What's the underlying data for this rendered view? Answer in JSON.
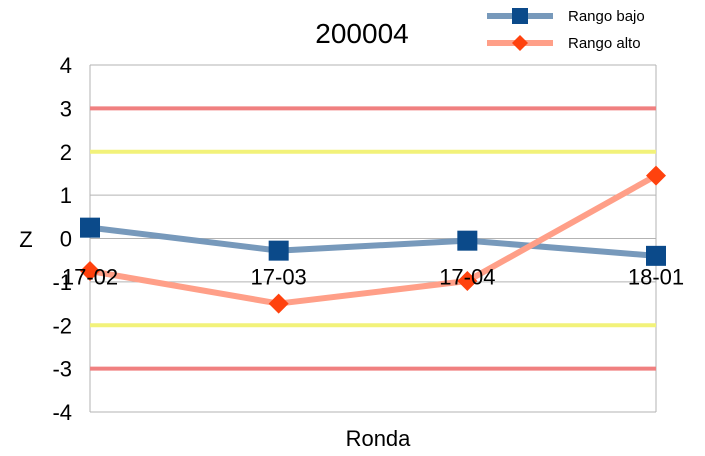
{
  "chart_data": {
    "type": "line",
    "title": "200004",
    "xlabel": "Ronda",
    "ylabel": "Z",
    "categories": [
      "17-02",
      "17-03",
      "17-04",
      "18-01"
    ],
    "ylim": [
      -4,
      4
    ],
    "yticks": [
      "4",
      "3",
      "2",
      "1",
      "0",
      "-1",
      "-2",
      "-3",
      "-4"
    ],
    "grid": "horizontal",
    "legend_position": "top-right",
    "series": [
      {
        "name": "Rango bajo",
        "values": [
          0.25,
          -0.28,
          -0.05,
          -0.4
        ],
        "color": "#7799bb",
        "marker_color": "#0b4a8a",
        "marker": "square"
      },
      {
        "name": "Rango alto",
        "values": [
          -0.75,
          -1.5,
          -0.98,
          1.45
        ],
        "color": "#ff9f88",
        "marker_color": "#ff420e",
        "marker": "diamond"
      }
    ],
    "reference_lines": [
      {
        "value": 3,
        "color": "#f08080"
      },
      {
        "value": 2,
        "color": "#f2f27a"
      },
      {
        "value": -2,
        "color": "#f2f27a"
      },
      {
        "value": -3,
        "color": "#f08080"
      }
    ]
  }
}
